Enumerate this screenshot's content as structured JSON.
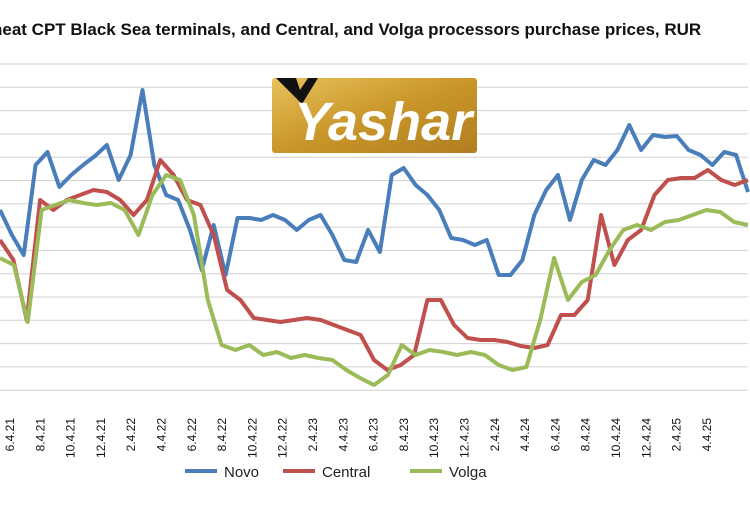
{
  "chart_data": {
    "type": "line",
    "title": "heat CPT Black Sea terminals, and Central, and Volga processors purchase prices, RUR",
    "xlabel": "",
    "ylabel": "",
    "grid": true,
    "legend_position": "bottom",
    "tick_labels": [
      "6.4.21",
      "8.4.21",
      "10.4.21",
      "12.4.21",
      "2.4.22",
      "4.4.22",
      "6.4.22",
      "8.4.22",
      "10.4.22",
      "12.4.22",
      "2.4.23",
      "4.4.23",
      "6.4.23",
      "8.4.23",
      "10.4.23",
      "12.4.23",
      "2.4.24",
      "4.4.24",
      "6.4.24",
      "8.4.24",
      "10.4.24",
      "12.4.24",
      "2.4.25",
      "4.4.25"
    ],
    "series": [
      {
        "name": "Novo",
        "color": "#4a7ebb",
        "values": [
          210,
          235,
          255,
          165,
          152,
          187,
          175,
          165,
          156,
          145,
          180,
          155,
          90,
          165,
          195,
          200,
          230,
          270,
          225,
          275,
          218,
          218,
          220,
          215,
          220,
          230,
          220,
          215,
          235,
          260,
          262,
          230,
          252,
          175,
          168,
          185,
          195,
          210,
          238,
          240,
          245,
          240,
          275,
          275,
          260,
          215,
          190,
          175,
          220,
          180,
          160,
          165,
          150,
          125,
          150,
          135,
          137,
          136,
          150,
          155,
          165,
          152,
          155,
          192
        ]
      },
      {
        "name": "Central",
        "color": "#c0504d",
        "values": [
          240,
          260,
          320,
          200,
          210,
          200,
          195,
          190,
          192,
          200,
          215,
          200,
          160,
          175,
          200,
          205,
          235,
          290,
          300,
          318,
          320,
          322,
          320,
          318,
          320,
          325,
          330,
          335,
          360,
          370,
          365,
          355,
          300,
          300,
          325,
          338,
          340,
          340,
          342,
          346,
          348,
          345,
          315,
          315,
          300,
          215,
          265,
          240,
          230,
          195,
          180,
          178,
          178,
          170,
          180,
          185,
          180
        ]
      },
      {
        "name": "Volga",
        "color": "#9bbb59",
        "values": [
          258,
          265,
          322,
          210,
          205,
          200,
          203,
          205,
          203,
          210,
          235,
          195,
          175,
          180,
          215,
          300,
          345,
          350,
          345,
          355,
          352,
          358,
          355,
          358,
          360,
          370,
          378,
          385,
          375,
          345,
          355,
          350,
          352,
          355,
          352,
          355,
          365,
          370,
          367,
          320,
          258,
          300,
          282,
          275,
          250,
          230,
          225,
          230,
          222,
          220,
          215,
          210,
          212,
          222,
          225
        ]
      }
    ]
  },
  "logo": {
    "text": "Yashar"
  }
}
